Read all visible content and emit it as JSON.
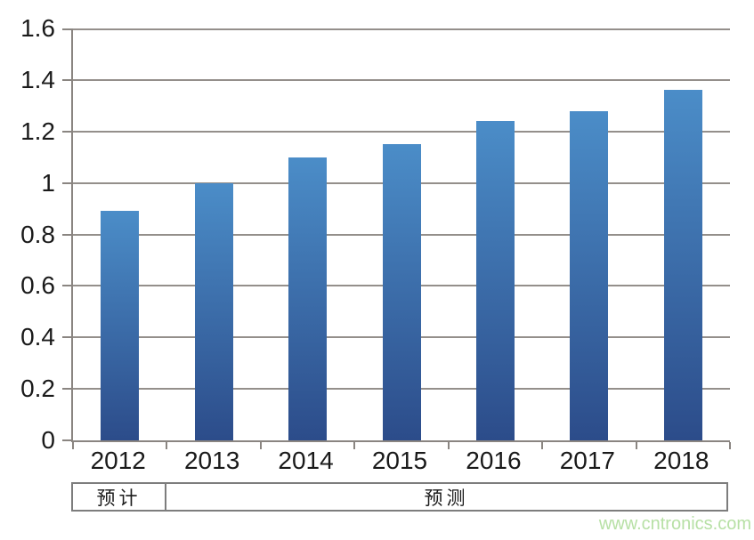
{
  "chart_data": {
    "type": "bar",
    "title": "",
    "categories": [
      "2012",
      "2013",
      "2014",
      "2015",
      "2016",
      "2017",
      "2018"
    ],
    "values": [
      0.89,
      1.0,
      1.1,
      1.15,
      1.24,
      1.28,
      1.36
    ],
    "xlabel": "",
    "ylabel": "",
    "ylim": [
      0,
      1.6
    ],
    "ytick_step": 0.2,
    "ytick_labels": [
      "0",
      "0.2",
      "0.4",
      "0.6",
      "0.8",
      "1",
      "1.2",
      "1.4",
      "1.6"
    ],
    "grid": true,
    "legend": null,
    "bar_color_top": "#4b8dc8",
    "bar_color_bottom": "#2c4c8a"
  },
  "footer": {
    "estimate_label": "预计",
    "forecast_label": "预测"
  },
  "watermark": {
    "text": "www.cntronics.com",
    "color": "#b7e0a5"
  },
  "colors": {
    "gridline": "#948f8b",
    "axis": "#8a8581",
    "text": "#1a1a1a",
    "table_border": "#7d7d7d"
  }
}
